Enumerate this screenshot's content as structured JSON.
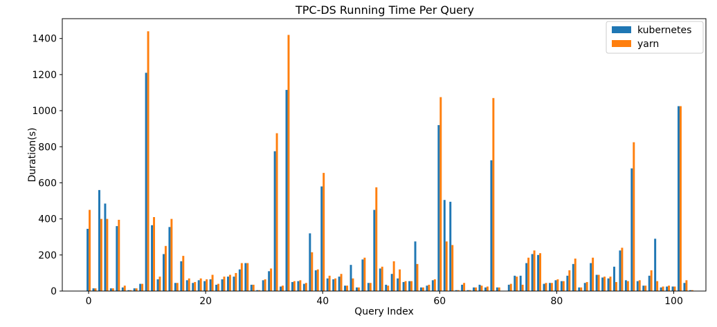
{
  "chart_data": {
    "type": "bar",
    "title": "TPC-DS Running Time Per Query",
    "xlabel": "Query Index",
    "ylabel": "Duration(s)",
    "xlim": [
      -4.5,
      105.5
    ],
    "ylim": [
      0,
      1510
    ],
    "x_ticks": [
      0,
      20,
      40,
      60,
      80,
      100
    ],
    "y_ticks": [
      0,
      200,
      400,
      600,
      800,
      1000,
      1200,
      1400
    ],
    "grid": false,
    "legend_position": "top-right",
    "series": [
      {
        "name": "kubernetes",
        "color": "#1f77b4",
        "values": [
          345,
          15,
          560,
          485,
          15,
          360,
          20,
          5,
          15,
          40,
          1210,
          365,
          65,
          205,
          355,
          45,
          165,
          60,
          45,
          60,
          55,
          65,
          35,
          65,
          80,
          80,
          120,
          155,
          35,
          5,
          60,
          110,
          775,
          25,
          1115,
          50,
          55,
          40,
          320,
          115,
          580,
          70,
          65,
          80,
          30,
          145,
          20,
          175,
          45,
          450,
          125,
          35,
          95,
          70,
          50,
          55,
          275,
          20,
          30,
          60,
          920,
          505,
          495,
          5,
          35,
          5,
          20,
          35,
          20,
          725,
          20,
          0,
          35,
          85,
          85,
          155,
          205,
          200,
          40,
          45,
          60,
          55,
          85,
          150,
          20,
          45,
          155,
          90,
          75,
          70,
          135,
          225,
          60,
          680,
          55,
          30,
          85,
          290,
          20,
          25,
          25,
          1025,
          45,
          5
        ]
      },
      {
        "name": "yarn",
        "color": "#ff7f0e",
        "values": [
          450,
          15,
          400,
          400,
          15,
          395,
          30,
          5,
          15,
          40,
          1440,
          410,
          80,
          250,
          400,
          45,
          195,
          70,
          50,
          70,
          65,
          90,
          40,
          80,
          90,
          100,
          155,
          155,
          35,
          5,
          65,
          125,
          875,
          30,
          1420,
          55,
          60,
          45,
          215,
          120,
          655,
          85,
          70,
          95,
          30,
          70,
          20,
          185,
          45,
          575,
          135,
          30,
          165,
          120,
          55,
          55,
          150,
          20,
          35,
          65,
          1075,
          275,
          255,
          5,
          45,
          5,
          20,
          30,
          25,
          1070,
          20,
          0,
          40,
          80,
          35,
          185,
          225,
          210,
          45,
          45,
          65,
          55,
          115,
          180,
          20,
          50,
          185,
          90,
          80,
          80,
          50,
          240,
          55,
          825,
          60,
          30,
          115,
          55,
          25,
          30,
          25,
          1025,
          60,
          5
        ]
      }
    ]
  }
}
